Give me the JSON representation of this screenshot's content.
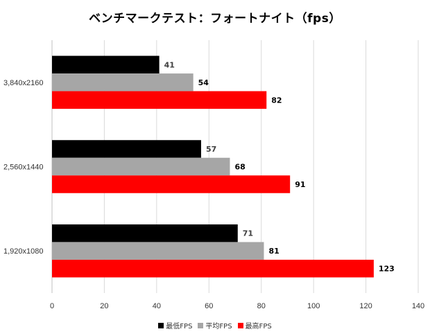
{
  "chart_data": {
    "type": "bar",
    "orientation": "horizontal",
    "title": "ベンチマークテスト：フォートナイト（fps）",
    "categories": [
      "3,840x2160",
      "2,560x1440",
      "1,920x1080"
    ],
    "series": [
      {
        "name": "最低FPS",
        "color": "#000000",
        "values": [
          41,
          57,
          71
        ]
      },
      {
        "name": "平均FPS",
        "color": "#a6a6a6",
        "values": [
          54,
          68,
          81
        ]
      },
      {
        "name": "最高FPS",
        "color": "#ff0000",
        "values": [
          82,
          91,
          123
        ]
      }
    ],
    "xlim": [
      0,
      140
    ],
    "xticks": [
      0,
      20,
      40,
      60,
      80,
      100,
      120,
      140
    ],
    "grid": true,
    "legend": "bottom"
  }
}
